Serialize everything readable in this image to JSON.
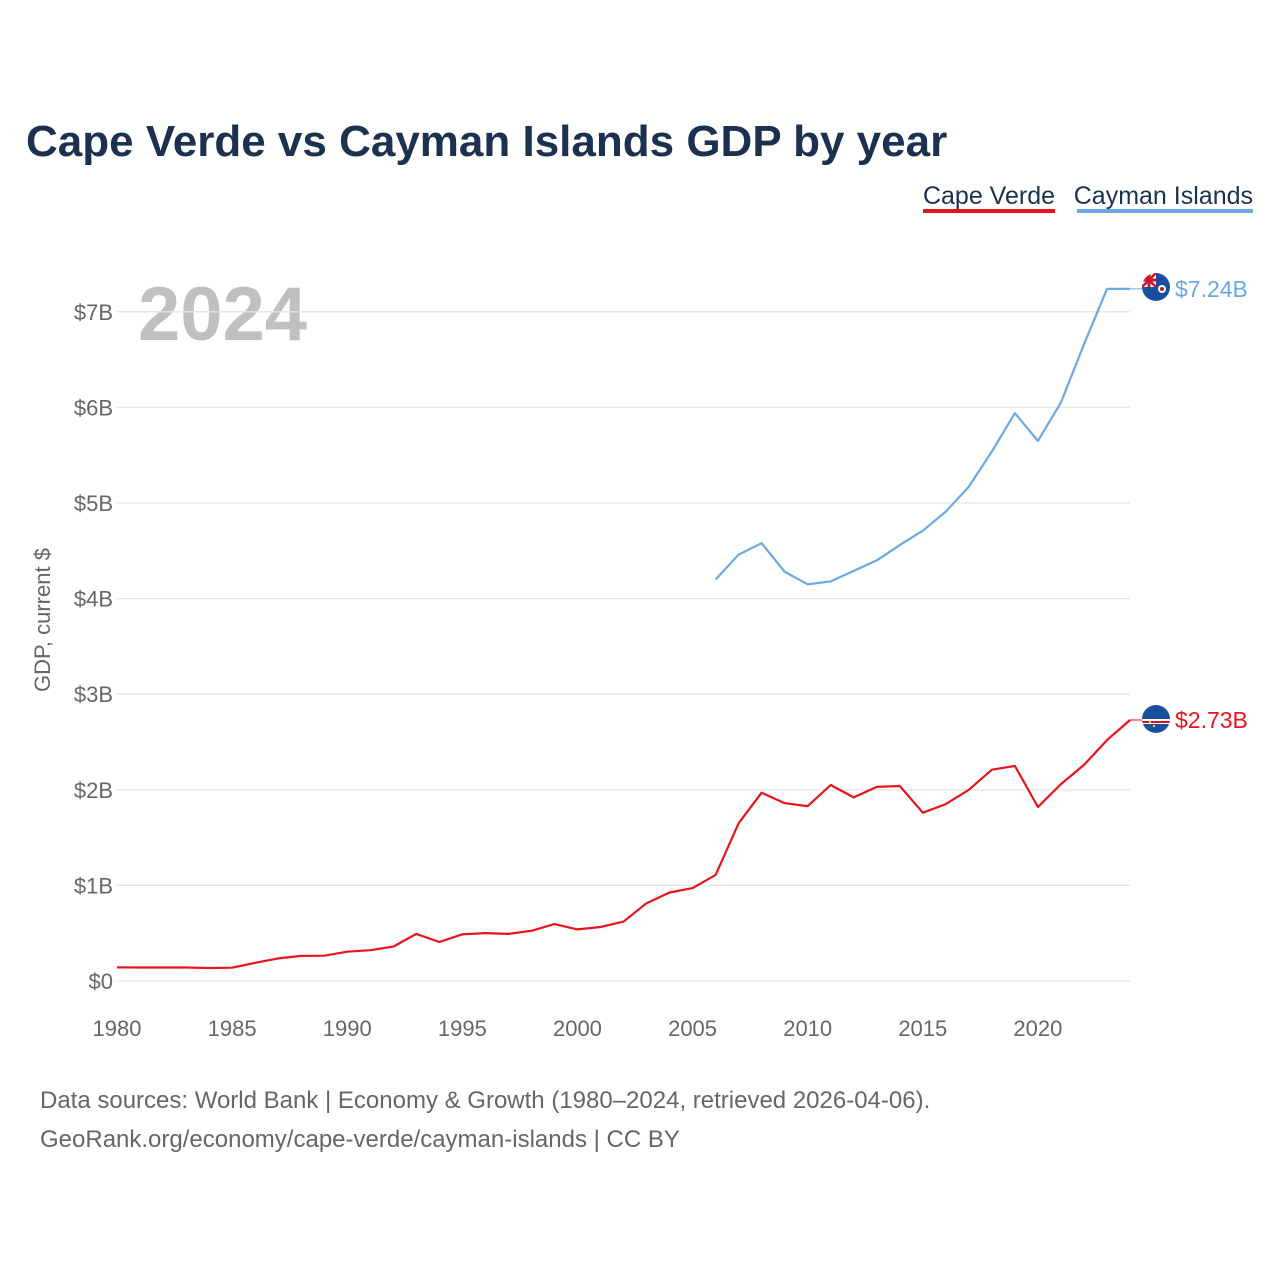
{
  "colors": {
    "cape_verde": "#e8141b",
    "cayman_islands": "#6aa9e4",
    "title": "#1c3050",
    "text_muted": "#666666",
    "watermark": "#c0c0c0",
    "grid": "#e6e6e6"
  },
  "chart_data": {
    "type": "line",
    "title": "Cape Verde vs Cayman Islands GDP by year",
    "ylabel": "GDP, current $",
    "xlabel": "",
    "year_watermark": "2024",
    "ylim": [
      0,
      7500000000
    ],
    "xlim": [
      1980,
      2024
    ],
    "y_ticks": [
      {
        "value": 0,
        "label": "$0"
      },
      {
        "value": 1000000000,
        "label": "$1B"
      },
      {
        "value": 2000000000,
        "label": "$2B"
      },
      {
        "value": 3000000000,
        "label": "$3B"
      },
      {
        "value": 4000000000,
        "label": "$4B"
      },
      {
        "value": 5000000000,
        "label": "$5B"
      },
      {
        "value": 6000000000,
        "label": "$6B"
      },
      {
        "value": 7000000000,
        "label": "$7B"
      }
    ],
    "x_ticks": [
      {
        "value": 1980,
        "label": "1980"
      },
      {
        "value": 1985,
        "label": "1985"
      },
      {
        "value": 1990,
        "label": "1990"
      },
      {
        "value": 1995,
        "label": "1995"
      },
      {
        "value": 2000,
        "label": "2000"
      },
      {
        "value": 2005,
        "label": "2005"
      },
      {
        "value": 2010,
        "label": "2010"
      },
      {
        "value": 2015,
        "label": "2015"
      },
      {
        "value": 2020,
        "label": "2020"
      }
    ],
    "legend_position": "top-right",
    "series": [
      {
        "name": "Cape Verde",
        "color_key": "cape_verde",
        "end_label": "$2.73B",
        "flag_icon": "cape-verde-flag-icon",
        "x": [
          1980,
          1981,
          1982,
          1983,
          1984,
          1985,
          1986,
          1987,
          1988,
          1989,
          1990,
          1991,
          1992,
          1993,
          1994,
          1995,
          1996,
          1997,
          1998,
          1999,
          2000,
          2001,
          2002,
          2003,
          2004,
          2005,
          2006,
          2007,
          2008,
          2009,
          2010,
          2011,
          2012,
          2013,
          2014,
          2015,
          2016,
          2017,
          2018,
          2019,
          2020,
          2021,
          2022,
          2023,
          2024
        ],
        "values": [
          142000000,
          141000000,
          141000000,
          141000000,
          136000000,
          139000000,
          190000000,
          236000000,
          263000000,
          265000000,
          307000000,
          322000000,
          360000000,
          493000000,
          408000000,
          489000000,
          501000000,
          493000000,
          525000000,
          595000000,
          540000000,
          565000000,
          621000000,
          814000000,
          926000000,
          972000000,
          1110000000,
          1650000000,
          1970000000,
          1860000000,
          1830000000,
          2050000000,
          1920000000,
          2030000000,
          2040000000,
          1760000000,
          1850000000,
          2000000000,
          2210000000,
          2250000000,
          1820000000,
          2060000000,
          2260000000,
          2520000000,
          2730000000
        ]
      },
      {
        "name": "Cayman Islands",
        "color_key": "cayman_islands",
        "end_label": "$7.24B",
        "flag_icon": "cayman-islands-flag-icon",
        "x": [
          2006,
          2007,
          2008,
          2009,
          2010,
          2011,
          2012,
          2013,
          2014,
          2015,
          2016,
          2017,
          2018,
          2019,
          2020,
          2021,
          2022,
          2023,
          2024
        ],
        "values": [
          4200000000,
          4460000000,
          4580000000,
          4280000000,
          4150000000,
          4180000000,
          4290000000,
          4400000000,
          4560000000,
          4710000000,
          4910000000,
          5170000000,
          5540000000,
          5940000000,
          5650000000,
          6050000000,
          6660000000,
          7240000000,
          7240000000
        ]
      }
    ]
  },
  "source": {
    "line1": "Data sources: World Bank | Economy & Growth (1980–2024, retrieved 2026-04-06).",
    "line2": "GeoRank.org/economy/cape-verde/cayman-islands | CC BY"
  }
}
